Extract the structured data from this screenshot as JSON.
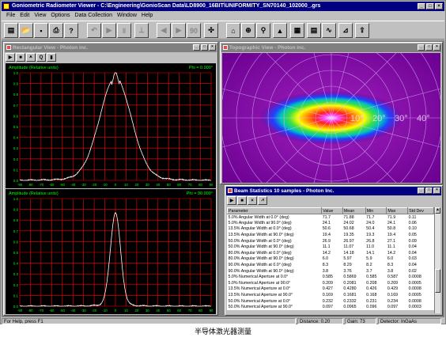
{
  "window": {
    "title": "Goniometric Radiometer Viewer - C:\\Engineering\\GonioScan Data\\LD8900_16BIT\\UNIFORMITY_SN70140_102000_.grs"
  },
  "menu": [
    "File",
    "Edit",
    "View",
    "Options",
    "Data Collection",
    "Window",
    "Help"
  ],
  "toolbar": [
    {
      "icon": "new-file-icon",
      "glyph": "▤"
    },
    {
      "icon": "open-folder-icon",
      "glyph": "📂"
    },
    {
      "icon": "save-icon",
      "glyph": "▪"
    },
    {
      "icon": "print-icon",
      "glyph": "⎙"
    },
    {
      "icon": "help-icon",
      "glyph": "?"
    },
    {
      "icon": "rewind-icon",
      "glyph": "↶"
    },
    {
      "icon": "play-icon",
      "glyph": "▶"
    },
    {
      "icon": "pause-icon",
      "glyph": "‖"
    },
    {
      "icon": "stop-icon",
      "glyph": "⊥"
    },
    {
      "icon": "step-back-icon",
      "glyph": "◀"
    },
    {
      "icon": "step-forward-icon",
      "glyph": "▶"
    },
    {
      "icon": "angle-90-label",
      "glyph": "90"
    },
    {
      "icon": "satellite-icon",
      "glyph": "✣"
    },
    {
      "icon": "goniometer-icon",
      "glyph": "⌂"
    },
    {
      "icon": "detector-icon",
      "glyph": "⊕"
    },
    {
      "icon": "beam-icon",
      "glyph": "⚲"
    },
    {
      "icon": "color-map-icon",
      "glyph": "▲"
    },
    {
      "icon": "grid-view-icon",
      "glyph": "▦"
    },
    {
      "icon": "table-view-icon",
      "glyph": "▤"
    },
    {
      "icon": "line-chart-icon",
      "glyph": "∿"
    },
    {
      "icon": "measure-chart-icon",
      "glyph": "⊿"
    },
    {
      "icon": "export-icon",
      "glyph": "⇪"
    }
  ],
  "rect_view": {
    "title": "Rectangular View - Photon inc.",
    "tools": [
      "▶",
      "■",
      "⩚",
      "Q",
      "▮"
    ],
    "top_plot": {
      "ylabel": "Amplitude (Relative units)",
      "phi_label": "Phi = 0.000°"
    },
    "bottom_plot": {
      "ylabel": "Amplitude (Relative units)",
      "phi_label": "Phi = 90.000°"
    },
    "y_ticks": [
      "1.0",
      "0.9",
      "0.8",
      "0.7",
      "0.6",
      "0.5",
      "0.4",
      "0.3",
      "0.2",
      "0.1",
      "0.0"
    ],
    "x_ticks": [
      "-90",
      "-80",
      "-70",
      "-60",
      "-50",
      "-40",
      "-30",
      "-20",
      "-10",
      "0",
      "10",
      "20",
      "30",
      "40",
      "50",
      "60",
      "70",
      "80",
      "90"
    ]
  },
  "topo_view": {
    "title": "Topographic View - Photon inc.",
    "angle_labels": [
      "10°",
      "20°",
      "30°",
      "40°"
    ]
  },
  "beam_stats": {
    "title": "Beam Statistics 10 samples - Photon Inc.",
    "tools": [
      "▶",
      "■",
      "×",
      "⩘"
    ],
    "columns": [
      "Parameter",
      "Value",
      "Mean",
      "Min",
      "Max",
      "Std Dev"
    ],
    "rows": [
      [
        "5.0% Angular Width at 0.0° (deg)",
        "71.7",
        "71.88",
        "71.7",
        "71.9",
        "0.11"
      ],
      [
        "5.0% Angular Width at 90.0° (deg)",
        "24.1",
        "24.02",
        "24.0",
        "24.1",
        "0.06"
      ],
      [
        "13.5% Angular Width at 0.0° (deg)",
        "50.6",
        "50.68",
        "50.4",
        "50.8",
        "0.10"
      ],
      [
        "13.5% Angular Width at 90.0° (deg)",
        "19.4",
        "19.35",
        "19.3",
        "19.4",
        "0.05"
      ],
      [
        "50.0% Angular Width at 0.0° (deg)",
        "26.9",
        "26.97",
        "26.8",
        "27.1",
        "0.09"
      ],
      [
        "50.0% Angular Width at 90.0° (deg)",
        "11.1",
        "11.07",
        "11.0",
        "11.1",
        "0.04"
      ],
      [
        "80.0% Angular Width at 0.0° (deg)",
        "14.2",
        "14.18",
        "14.1",
        "14.2",
        "0.04"
      ],
      [
        "80.0% Angular Width at 90.0° (deg)",
        "6.0",
        "5.97",
        "5.9",
        "6.0",
        "0.03"
      ],
      [
        "90.0% Angular Width at 0.0° (deg)",
        "8.3",
        "8.29",
        "8.2",
        "8.3",
        "0.04"
      ],
      [
        "90.0% Angular Width at 90.0° (deg)",
        "3.8",
        "3.76",
        "3.7",
        "3.8",
        "0.02"
      ],
      [
        "5.0% Numerical Aperture at 0.0°",
        "0.585",
        "0.5869",
        "0.585",
        "0.587",
        "0.0008"
      ],
      [
        "5.0% Numerical Aperture at 90.0°",
        "0.209",
        "0.2081",
        "0.208",
        "0.209",
        "0.0005"
      ],
      [
        "13.5% Numerical Aperture at 0.0°",
        "0.427",
        "0.4280",
        "0.426",
        "0.429",
        "0.0008"
      ],
      [
        "13.5% Numerical Aperture at 90.0°",
        "0.169",
        "0.1681",
        "0.168",
        "0.169",
        "0.0005"
      ],
      [
        "50.0% Numerical Aperture at 0.0°",
        "0.232",
        "0.2332",
        "0.231",
        "0.234",
        "0.0008"
      ],
      [
        "50.0% Numerical Aperture at 90.0°",
        "0.097",
        "0.0965",
        "0.096",
        "0.097",
        "0.0003"
      ]
    ]
  },
  "status": {
    "help": "For Help, press F1",
    "distance": "Distance: 0.20",
    "gain": "Gain: 73",
    "detector": "Detector: InGaAs"
  },
  "caption": "半导体激光器测量",
  "colors": {
    "title_active": "#000080",
    "plot_grid": "#ff0000",
    "plot_label": "#00ff00",
    "curve": "#ffffff",
    "topo_bg": "#8000a0"
  }
}
